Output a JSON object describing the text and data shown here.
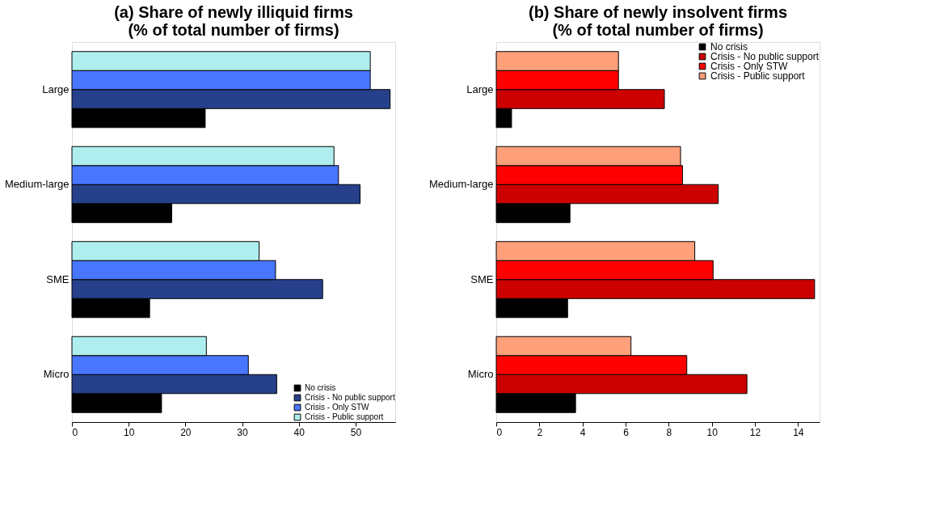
{
  "chart_data": [
    {
      "type": "bar",
      "orientation": "horizontal",
      "title": "(a) Share of newly illiquid firms\n(% of total number of firms)",
      "categories": [
        "Large",
        "Medium-large",
        "SME",
        "Micro"
      ],
      "xlim": [
        0,
        57
      ],
      "xticks": [
        0,
        10,
        20,
        30,
        40,
        50
      ],
      "legend": "bottom right",
      "series": [
        {
          "name": "No crisis",
          "color": "#000000",
          "values": [
            23.5,
            17.6,
            13.7,
            15.8
          ]
        },
        {
          "name": "Crisis - No public support",
          "color": "#26408b",
          "values": [
            56.1,
            50.8,
            44.2,
            36.1
          ]
        },
        {
          "name": "Crisis - Only STW",
          "color": "#4876ff",
          "values": [
            52.6,
            47.0,
            35.9,
            31.1
          ]
        },
        {
          "name": "Crisis - Public support",
          "color": "#aeeeee",
          "values": [
            52.6,
            46.2,
            33.0,
            23.7
          ]
        }
      ]
    },
    {
      "type": "bar",
      "orientation": "horizontal",
      "title": "(b) Share of newly insolvent firms\n(% of total number of firms)",
      "categories": [
        "Large",
        "Medium-large",
        "SME",
        "Micro"
      ],
      "xlim": [
        0,
        15
      ],
      "xticks": [
        0,
        2,
        4,
        6,
        8,
        10,
        12,
        14
      ],
      "legend": "top right",
      "series": [
        {
          "name": "No crisis",
          "color": "#000000",
          "values": [
            0.71,
            3.42,
            3.31,
            3.68
          ]
        },
        {
          "name": "Crisis - No public support",
          "color": "#cd0000",
          "values": [
            7.8,
            10.3,
            14.77,
            11.63
          ]
        },
        {
          "name": "Crisis - Only STW",
          "color": "#ff0000",
          "values": [
            5.67,
            8.64,
            10.06,
            8.84
          ]
        },
        {
          "name": "Crisis - Public support",
          "color": "#ffa07a",
          "values": [
            5.67,
            8.55,
            9.21,
            6.25
          ]
        }
      ]
    }
  ]
}
